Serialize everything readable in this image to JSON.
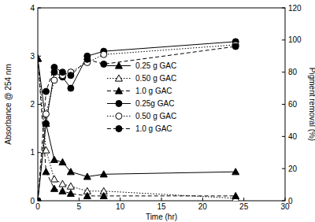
{
  "chart_data": {
    "type": "line",
    "x_label": "Time (hr)",
    "y_label": "Absorbance @ 254 nm",
    "y2_label": "Pigment removal (%)",
    "x": [
      0,
      1,
      2,
      3,
      4,
      6,
      8,
      24
    ],
    "xlim": [
      0,
      30
    ],
    "xticks": [
      0,
      5,
      10,
      15,
      20,
      25,
      30
    ],
    "ylim": [
      0,
      4
    ],
    "yticks": [
      0,
      1,
      2,
      3,
      4
    ],
    "y2lim": [
      0,
      120
    ],
    "y2ticks": [
      0,
      20,
      40,
      60,
      80,
      100,
      120
    ],
    "grid": false,
    "legend": "center",
    "series": [
      {
        "name": "0.25 g GAC",
        "color": "#000000",
        "marker": "triangle",
        "line_style": "solid",
        "values": [
          2.95,
          1.6,
          0.85,
          0.8,
          0.6,
          0.5,
          0.55,
          0.6
        ]
      },
      {
        "name": "0.50 g GAC",
        "color": "#000000",
        "marker": "triangle-open",
        "line_style": "dotted",
        "values": [
          2.95,
          1.05,
          0.45,
          0.35,
          0.3,
          0.2,
          0.2,
          0.05
        ]
      },
      {
        "name": "1.0 g GAC",
        "color": "#000000",
        "marker": "triangle",
        "line_style": "dashed",
        "values": [
          2.95,
          0.6,
          0.25,
          0.2,
          0.15,
          0.1,
          0.1,
          0.1
        ]
      },
      {
        "name": "0.25g GAC",
        "color": "#000000",
        "marker": "circle",
        "line_style": "solid",
        "axis": "y2",
        "values": [
          0,
          48,
          80,
          77,
          70,
          90,
          93,
          99
        ]
      },
      {
        "name": "0.50 g GAC",
        "color": "#000000",
        "marker": "circle-open",
        "line_style": "dotted",
        "axis": "y2",
        "values": [
          0,
          54,
          75,
          78,
          80,
          86,
          91,
          97
        ]
      },
      {
        "name": "1.0 g GAC",
        "color": "#000000",
        "marker": "circle",
        "line_style": "dashed",
        "axis": "y2",
        "values": [
          0,
          68,
          83,
          80,
          78,
          88,
          85,
          96
        ]
      }
    ]
  }
}
